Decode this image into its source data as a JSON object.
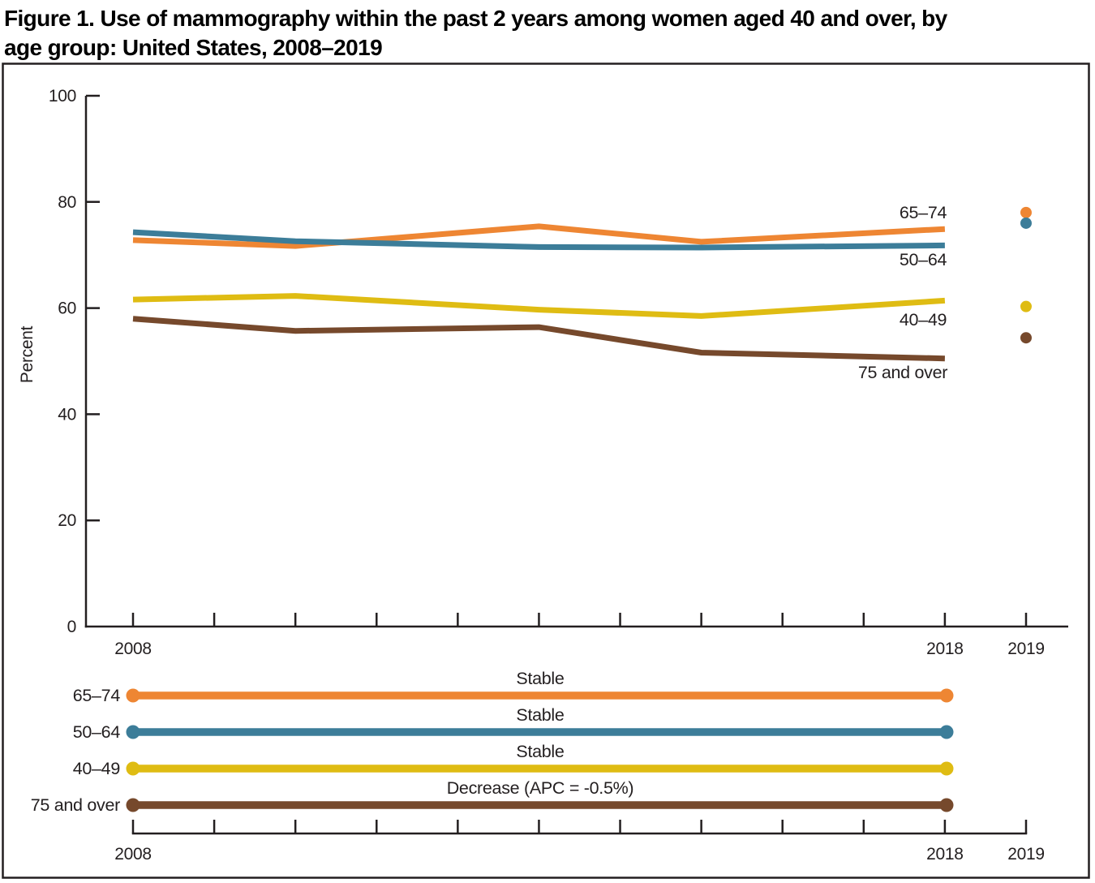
{
  "title": {
    "line1": "Figure 1. Use of mammography within the past 2 years among women aged 40 and over, by",
    "line2": "age group: United States, 2008–2019"
  },
  "chart_data": {
    "type": "line",
    "title": "Use of mammography within the past 2 years among women aged 40 and over, by age group: United States, 2008–2019",
    "xlabel": "",
    "ylabel": "Percent",
    "ylim": [
      0,
      100
    ],
    "yticks": [
      0,
      20,
      40,
      60,
      80,
      100
    ],
    "x_tick_years": [
      2008,
      2009,
      2010,
      2011,
      2012,
      2013,
      2014,
      2015,
      2016,
      2017,
      2018,
      2019
    ],
    "x_axis_labels": [
      {
        "year": 2008,
        "label": "2008"
      },
      {
        "year": 2018,
        "label": "2018"
      },
      {
        "year": 2019,
        "label": "2019"
      }
    ],
    "survey_years": [
      2008,
      2010,
      2013,
      2015,
      2018
    ],
    "year_2019": 2019,
    "grid": "off",
    "legend_position": "bottom-trend-panel",
    "series": [
      {
        "name": "65–74",
        "color": "#ee8633",
        "values": [
          72.8,
          71.7,
          75.4,
          72.5,
          74.9
        ],
        "value_2019": 78.0,
        "trend": "Stable"
      },
      {
        "name": "50–64",
        "color": "#3c7d99",
        "values": [
          74.3,
          72.6,
          71.5,
          71.4,
          71.8
        ],
        "value_2019": 76.0,
        "trend": "Stable"
      },
      {
        "name": "40–49",
        "color": "#dfbc13",
        "values": [
          61.6,
          62.3,
          59.7,
          58.5,
          61.4
        ],
        "value_2019": 60.3,
        "trend": "Stable"
      },
      {
        "name": "75 and over",
        "color": "#76492c",
        "values": [
          58.0,
          55.7,
          56.4,
          51.6,
          50.5
        ],
        "value_2019": 54.4,
        "trend": "Decrease (APC = -0.5%)"
      }
    ],
    "trend_panel": {
      "x_axis_labels": [
        "2008",
        "2018",
        "2019"
      ]
    },
    "colors": {
      "axis": "#231f20",
      "text": "#231f20",
      "background": "#ffffff"
    }
  }
}
